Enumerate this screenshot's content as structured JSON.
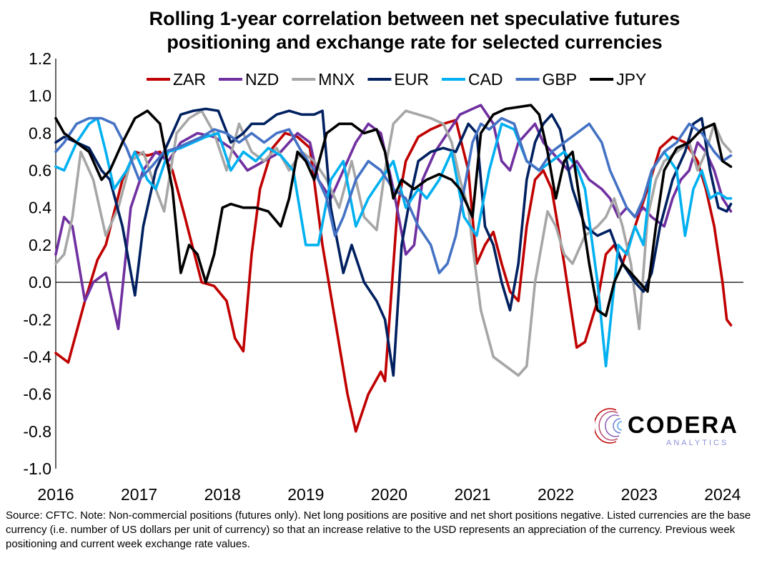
{
  "chart_data": {
    "type": "line",
    "title": "Rolling 1-year correlation between net speculative futures positioning and exchange rate for selected currencies",
    "title_lines": [
      "Rolling 1-year correlation between net speculative futures",
      "positioning and exchange rate for selected currencies"
    ],
    "xlabel": "",
    "ylabel": "",
    "xlim": [
      2016,
      2024.25
    ],
    "ylim": [
      -1.0,
      1.2
    ],
    "y_ticks": [
      "1.2",
      "1.0",
      "0.8",
      "0.6",
      "0.4",
      "0.2",
      "0.0",
      "-0.2",
      "-0.4",
      "-0.6",
      "-0.8",
      "-1.0"
    ],
    "x_ticks": [
      "2016",
      "2017",
      "2018",
      "2019",
      "2020",
      "2021",
      "2022",
      "2023",
      "2024"
    ],
    "grid": false,
    "legend_position": "top",
    "series": [
      {
        "name": "ZAR",
        "color": "#c00000",
        "x": [
          2016.0,
          2016.15,
          2016.35,
          2016.5,
          2016.6,
          2016.8,
          2016.95,
          2017.1,
          2017.25,
          2017.4,
          2017.55,
          2017.75,
          2017.9,
          2018.05,
          2018.15,
          2018.25,
          2018.35,
          2018.45,
          2018.6,
          2018.75,
          2018.9,
          2019.05,
          2019.2,
          2019.35,
          2019.5,
          2019.6,
          2019.75,
          2019.9,
          2019.95,
          2020.1,
          2020.2,
          2020.35,
          2020.5,
          2020.65,
          2020.8,
          2020.95,
          2021.05,
          2021.15,
          2021.25,
          2021.35,
          2021.45,
          2021.55,
          2021.65,
          2021.75,
          2021.85,
          2021.95,
          2022.1,
          2022.25,
          2022.35,
          2022.5,
          2022.6,
          2022.7,
          2022.8,
          2022.95,
          2023.1,
          2023.25,
          2023.4,
          2023.55,
          2023.7,
          2023.8,
          2023.9,
          2024.0,
          2024.05,
          2024.1
        ],
        "values": [
          -0.38,
          -0.43,
          -0.1,
          0.12,
          0.2,
          0.55,
          0.7,
          0.68,
          0.7,
          0.6,
          0.35,
          0.0,
          -0.02,
          -0.1,
          -0.3,
          -0.37,
          0.15,
          0.5,
          0.72,
          0.8,
          0.78,
          0.72,
          0.2,
          -0.2,
          -0.6,
          -0.8,
          -0.6,
          -0.48,
          -0.53,
          0.4,
          0.65,
          0.78,
          0.82,
          0.85,
          0.87,
          0.6,
          0.1,
          0.2,
          0.27,
          0.1,
          -0.05,
          -0.1,
          0.3,
          0.55,
          0.6,
          0.5,
          0.1,
          -0.35,
          -0.32,
          -0.1,
          0.15,
          0.2,
          0.1,
          0.3,
          0.5,
          0.72,
          0.78,
          0.75,
          0.65,
          0.5,
          0.3,
          0.0,
          -0.2,
          -0.23
        ]
      },
      {
        "name": "NZD",
        "color": "#7030a0",
        "x": [
          2016.0,
          2016.1,
          2016.2,
          2016.35,
          2016.45,
          2016.6,
          2016.75,
          2016.9,
          2017.05,
          2017.2,
          2017.35,
          2017.5,
          2017.7,
          2017.9,
          2018.1,
          2018.3,
          2018.5,
          2018.7,
          2018.9,
          2019.05,
          2019.15,
          2019.3,
          2019.45,
          2019.6,
          2019.75,
          2019.9,
          2020.05,
          2020.2,
          2020.3,
          2020.4,
          2020.55,
          2020.7,
          2020.85,
          2021.0,
          2021.1,
          2021.25,
          2021.35,
          2021.45,
          2021.55,
          2021.65,
          2021.75,
          2021.85,
          2021.95,
          2022.05,
          2022.15,
          2022.25,
          2022.4,
          2022.55,
          2022.65,
          2022.75,
          2022.85,
          2022.95,
          2023.05,
          2023.15,
          2023.3,
          2023.4,
          2023.5,
          2023.6,
          2023.7,
          2023.8,
          2023.9,
          2024.0,
          2024.1
        ],
        "values": [
          0.15,
          0.35,
          0.3,
          -0.1,
          0.0,
          0.05,
          -0.25,
          0.4,
          0.6,
          0.7,
          0.65,
          0.75,
          0.8,
          0.78,
          0.72,
          0.6,
          0.65,
          0.7,
          0.8,
          0.75,
          0.55,
          0.45,
          0.6,
          0.75,
          0.85,
          0.8,
          0.5,
          0.15,
          0.2,
          0.55,
          0.7,
          0.8,
          0.9,
          0.93,
          0.95,
          0.85,
          0.65,
          0.6,
          0.75,
          0.8,
          0.85,
          0.75,
          0.7,
          0.65,
          0.6,
          0.65,
          0.55,
          0.5,
          0.45,
          0.35,
          0.4,
          0.35,
          0.4,
          0.35,
          0.3,
          0.45,
          0.55,
          0.6,
          0.75,
          0.7,
          0.6,
          0.45,
          0.38
        ]
      },
      {
        "name": "MNX",
        "color": "#a6a6a6",
        "x": [
          2016.0,
          2016.1,
          2016.2,
          2016.3,
          2016.45,
          2016.6,
          2016.75,
          2016.9,
          2017.05,
          2017.2,
          2017.3,
          2017.45,
          2017.6,
          2017.75,
          2017.9,
          2018.05,
          2018.2,
          2018.35,
          2018.5,
          2018.65,
          2018.8,
          2018.95,
          2019.1,
          2019.25,
          2019.4,
          2019.55,
          2019.7,
          2019.85,
          2019.95,
          2020.05,
          2020.2,
          2020.35,
          2020.5,
          2020.65,
          2020.75,
          2020.85,
          2020.95,
          2021.0,
          2021.1,
          2021.25,
          2021.4,
          2021.55,
          2021.65,
          2021.75,
          2021.9,
          2022.0,
          2022.1,
          2022.2,
          2022.35,
          2022.5,
          2022.6,
          2022.7,
          2022.8,
          2022.9,
          2023.0,
          2023.1,
          2023.2,
          2023.3,
          2023.45,
          2023.6,
          2023.7,
          2023.8,
          2023.9,
          2024.0,
          2024.1
        ],
        "values": [
          0.1,
          0.15,
          0.35,
          0.7,
          0.55,
          0.25,
          0.4,
          0.65,
          0.7,
          0.5,
          0.38,
          0.8,
          0.88,
          0.92,
          0.8,
          0.6,
          0.85,
          0.7,
          0.65,
          0.72,
          0.6,
          0.7,
          0.65,
          0.55,
          0.4,
          0.65,
          0.35,
          0.28,
          0.6,
          0.85,
          0.92,
          0.9,
          0.88,
          0.85,
          0.75,
          0.55,
          0.4,
          0.2,
          -0.15,
          -0.4,
          -0.45,
          -0.5,
          -0.45,
          0.0,
          0.38,
          0.3,
          0.15,
          0.1,
          0.25,
          0.3,
          0.35,
          0.45,
          0.3,
          0.1,
          -0.25,
          0.35,
          0.55,
          0.65,
          0.7,
          0.75,
          0.6,
          0.7,
          0.85,
          0.75,
          0.7
        ]
      },
      {
        "name": "EUR",
        "color": "#002060",
        "x": [
          2016.0,
          2016.1,
          2016.25,
          2016.4,
          2016.55,
          2016.65,
          2016.8,
          2016.95,
          2017.05,
          2017.2,
          2017.35,
          2017.5,
          2017.65,
          2017.8,
          2017.95,
          2018.1,
          2018.25,
          2018.35,
          2018.5,
          2018.65,
          2018.8,
          2018.95,
          2019.1,
          2019.2,
          2019.3,
          2019.45,
          2019.55,
          2019.7,
          2019.85,
          2019.95,
          2020.05,
          2020.15,
          2020.25,
          2020.35,
          2020.5,
          2020.65,
          2020.8,
          2020.95,
          2021.05,
          2021.15,
          2021.25,
          2021.35,
          2021.45,
          2021.55,
          2021.65,
          2021.75,
          2021.85,
          2021.95,
          2022.05,
          2022.2,
          2022.35,
          2022.5,
          2022.65,
          2022.8,
          2022.95,
          2023.05,
          2023.15,
          2023.25,
          2023.4,
          2023.55,
          2023.65,
          2023.75,
          2023.85,
          2023.95,
          2024.05,
          2024.1
        ],
        "values": [
          0.75,
          0.78,
          0.75,
          0.72,
          0.6,
          0.55,
          0.3,
          -0.07,
          0.3,
          0.6,
          0.75,
          0.9,
          0.92,
          0.93,
          0.92,
          0.75,
          0.8,
          0.85,
          0.85,
          0.9,
          0.92,
          0.9,
          0.9,
          0.92,
          0.4,
          0.05,
          0.2,
          0.0,
          -0.1,
          -0.2,
          -0.5,
          0.2,
          0.45,
          0.65,
          0.7,
          0.72,
          0.7,
          0.85,
          0.8,
          0.3,
          0.2,
          0.0,
          -0.15,
          0.1,
          0.55,
          0.75,
          0.85,
          0.9,
          0.82,
          0.5,
          0.3,
          0.25,
          0.28,
          0.1,
          0.0,
          -0.05,
          0.05,
          0.3,
          0.55,
          0.7,
          0.85,
          0.88,
          0.6,
          0.4,
          0.38,
          0.42
        ]
      },
      {
        "name": "CAD",
        "color": "#00b0f0",
        "x": [
          2016.0,
          2016.1,
          2016.25,
          2016.4,
          2016.5,
          2016.6,
          2016.7,
          2016.85,
          2016.95,
          2017.1,
          2017.2,
          2017.35,
          2017.5,
          2017.65,
          2017.8,
          2017.95,
          2018.1,
          2018.25,
          2018.4,
          2018.55,
          2018.7,
          2018.85,
          2019.0,
          2019.15,
          2019.3,
          2019.45,
          2019.6,
          2019.75,
          2019.9,
          2020.05,
          2020.2,
          2020.35,
          2020.45,
          2020.6,
          2020.75,
          2020.9,
          2021.05,
          2021.2,
          2021.35,
          2021.5,
          2021.65,
          2021.8,
          2021.95,
          2022.1,
          2022.25,
          2022.35,
          2022.5,
          2022.6,
          2022.75,
          2022.85,
          2022.95,
          2023.05,
          2023.15,
          2023.3,
          2023.45,
          2023.55,
          2023.65,
          2023.75,
          2023.85,
          2023.95,
          2024.05,
          2024.1
        ],
        "values": [
          0.62,
          0.6,
          0.75,
          0.85,
          0.88,
          0.7,
          0.5,
          0.6,
          0.7,
          0.55,
          0.5,
          0.7,
          0.72,
          0.75,
          0.78,
          0.8,
          0.6,
          0.7,
          0.65,
          0.72,
          0.68,
          0.6,
          0.2,
          0.2,
          0.55,
          0.65,
          0.3,
          0.45,
          0.55,
          0.65,
          0.4,
          0.5,
          0.45,
          0.55,
          0.7,
          0.35,
          0.25,
          0.6,
          0.85,
          0.82,
          0.65,
          0.6,
          0.65,
          0.7,
          0.62,
          0.5,
          0.0,
          -0.45,
          0.2,
          0.15,
          0.3,
          0.2,
          0.6,
          0.7,
          0.6,
          0.25,
          0.5,
          0.6,
          0.45,
          0.48,
          0.45,
          0.45
        ]
      },
      {
        "name": "GBP",
        "color": "#4472c4",
        "x": [
          2016.0,
          2016.1,
          2016.25,
          2016.4,
          2016.55,
          2016.7,
          2016.85,
          2017.0,
          2017.15,
          2017.3,
          2017.45,
          2017.6,
          2017.75,
          2017.9,
          2018.05,
          2018.2,
          2018.35,
          2018.5,
          2018.65,
          2018.8,
          2018.95,
          2019.1,
          2019.25,
          2019.35,
          2019.45,
          2019.6,
          2019.75,
          2019.9,
          2020.05,
          2020.2,
          2020.35,
          2020.5,
          2020.6,
          2020.7,
          2020.8,
          2020.9,
          2021.0,
          2021.1,
          2021.2,
          2021.35,
          2021.5,
          2021.65,
          2021.8,
          2021.95,
          2022.1,
          2022.25,
          2022.4,
          2022.55,
          2022.65,
          2022.75,
          2022.85,
          2022.95,
          2023.05,
          2023.15,
          2023.3,
          2023.45,
          2023.6,
          2023.75,
          2023.9,
          2024.0,
          2024.1
        ],
        "values": [
          0.7,
          0.75,
          0.85,
          0.88,
          0.88,
          0.85,
          0.72,
          0.55,
          0.62,
          0.7,
          0.72,
          0.75,
          0.78,
          0.82,
          0.8,
          0.75,
          0.8,
          0.75,
          0.8,
          0.82,
          0.7,
          0.6,
          0.45,
          0.25,
          0.35,
          0.55,
          0.65,
          0.6,
          0.5,
          0.45,
          0.3,
          0.2,
          0.05,
          0.1,
          0.25,
          0.5,
          0.75,
          0.85,
          0.82,
          0.88,
          0.85,
          0.65,
          0.6,
          0.7,
          0.75,
          0.8,
          0.85,
          0.75,
          0.6,
          0.5,
          0.4,
          0.35,
          0.45,
          0.6,
          0.7,
          0.75,
          0.85,
          0.8,
          0.7,
          0.65,
          0.68
        ]
      },
      {
        "name": "JPY",
        "color": "#000000",
        "x": [
          2016.0,
          2016.1,
          2016.25,
          2016.4,
          2016.55,
          2016.65,
          2016.8,
          2016.95,
          2017.1,
          2017.25,
          2017.4,
          2017.5,
          2017.6,
          2017.7,
          2017.8,
          2017.9,
          2018.0,
          2018.1,
          2018.25,
          2018.4,
          2018.55,
          2018.7,
          2018.8,
          2018.9,
          2019.0,
          2019.1,
          2019.25,
          2019.4,
          2019.55,
          2019.7,
          2019.85,
          2019.95,
          2020.05,
          2020.15,
          2020.3,
          2020.45,
          2020.6,
          2020.75,
          2020.85,
          2020.95,
          2021.0,
          2021.1,
          2021.25,
          2021.4,
          2021.55,
          2021.7,
          2021.8,
          2021.9,
          2022.0,
          2022.1,
          2022.2,
          2022.3,
          2022.4,
          2022.5,
          2022.6,
          2022.7,
          2022.8,
          2022.9,
          2023.0,
          2023.1,
          2023.2,
          2023.3,
          2023.45,
          2023.6,
          2023.75,
          2023.9,
          2024.0,
          2024.1
        ],
        "values": [
          0.88,
          0.8,
          0.75,
          0.7,
          0.55,
          0.6,
          0.75,
          0.88,
          0.92,
          0.85,
          0.5,
          0.05,
          0.2,
          0.15,
          0.0,
          0.15,
          0.4,
          0.42,
          0.4,
          0.4,
          0.38,
          0.3,
          0.45,
          0.7,
          0.65,
          0.55,
          0.8,
          0.85,
          0.85,
          0.8,
          0.82,
          0.7,
          0.45,
          0.55,
          0.5,
          0.55,
          0.58,
          0.55,
          0.5,
          0.4,
          0.35,
          0.8,
          0.9,
          0.93,
          0.94,
          0.95,
          0.9,
          0.7,
          0.45,
          0.65,
          0.7,
          0.4,
          0.1,
          -0.15,
          -0.18,
          0.0,
          0.1,
          0.05,
          0.0,
          -0.05,
          0.3,
          0.6,
          0.72,
          0.75,
          0.82,
          0.85,
          0.65,
          0.62
        ]
      }
    ]
  },
  "footnote": "Source: CFTC. Note: Non-commercial positions (futures only). Net long positions are positive and net short positions negative. Listed currencies are the base currency (i.e. number of US dollars per unit of currency) so that an increase relative to the USD represents an appreciation of the currency. Previous week positioning and current week exchange rate values.",
  "logo": {
    "name": "CODERA",
    "sub": "ANALYTICS",
    "icon": "globe-lines-icon"
  }
}
